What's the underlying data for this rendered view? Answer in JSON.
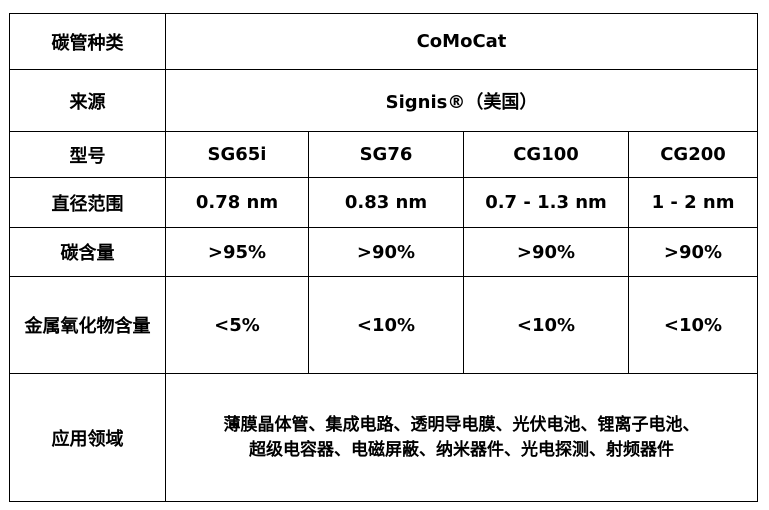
{
  "table": {
    "rows": {
      "type": {
        "label": "碳管种类",
        "value": "CoMoCat"
      },
      "source": {
        "label": "来源",
        "value": "Signis®（美国）"
      },
      "model": {
        "label": "型号",
        "cells": [
          "SG65i",
          "SG76",
          "CG100",
          "CG200"
        ]
      },
      "diameter": {
        "label": "直径范围",
        "cells": [
          "0.78 nm",
          "0.83 nm",
          "0.7 - 1.3 nm",
          "1 - 2 nm"
        ]
      },
      "carbon": {
        "label": "碳含量",
        "cells": [
          ">95%",
          ">90%",
          ">90%",
          ">90%"
        ]
      },
      "metal_oxide": {
        "label": "金属氧化物含量",
        "cells": [
          "<5%",
          "<10%",
          "<10%",
          "<10%"
        ]
      },
      "applications": {
        "label": "应用领域",
        "lines": [
          "薄膜晶体管、集成电路、透明导电膜、光伏电池、锂离子电池、",
          "超级电容器、电磁屏蔽、纳米器件、光电探测、射频器件"
        ]
      }
    }
  }
}
